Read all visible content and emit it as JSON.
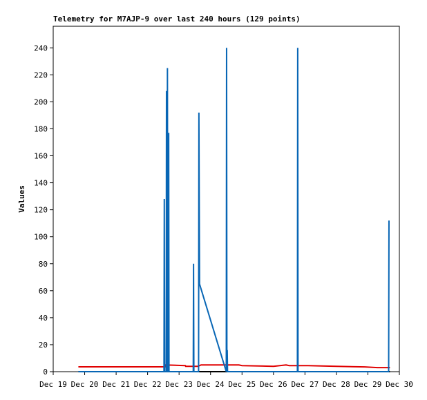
{
  "chart_data": {
    "type": "line",
    "title": "Telemetry for M7AJP-9 over last 240 hours (129 points)",
    "y_label": "Values",
    "xlim": [
      19,
      30
    ],
    "xticks": [
      {
        "value": 19,
        "label": "Dec 19"
      },
      {
        "value": 20,
        "label": "Dec 20"
      },
      {
        "value": 21,
        "label": "Dec 21"
      },
      {
        "value": 22,
        "label": "Dec 22"
      },
      {
        "value": 23,
        "label": "Dec 23"
      },
      {
        "value": 24,
        "label": "Dec 24"
      },
      {
        "value": 25,
        "label": "Dec 25"
      },
      {
        "value": 26,
        "label": "Dec 26"
      },
      {
        "value": 27,
        "label": "Dec 27"
      },
      {
        "value": 28,
        "label": "Dec 28"
      },
      {
        "value": 29,
        "label": "Dec 29"
      },
      {
        "value": 30,
        "label": "Dec 30"
      }
    ],
    "ylim": [
      0,
      256
    ],
    "yticks": [
      0,
      20,
      40,
      60,
      80,
      100,
      120,
      140,
      160,
      180,
      200,
      220,
      240
    ],
    "grid": false,
    "series": [
      {
        "color": "#000000",
        "x": [
          19.8,
          29.7
        ],
        "values": [
          0,
          0
        ]
      },
      {
        "color": "#e00000",
        "x": [
          19.8,
          22.55,
          22.56,
          23.2,
          23.21,
          23.6,
          23.7,
          24.9,
          25,
          26,
          26.4,
          26.5,
          27,
          27.1,
          28,
          28.9,
          29.3,
          29.7
        ],
        "values": [
          3.6,
          3.6,
          5,
          4.5,
          4,
          4,
          5,
          5,
          4.5,
          4,
          5,
          4.5,
          4.5,
          4.5,
          4,
          3.5,
          3,
          3
        ]
      },
      {
        "color": "#0866b5",
        "x": [
          19.8,
          22.52,
          22.53,
          22.54,
          22.59,
          22.6,
          22.61,
          22.62,
          22.63,
          22.64,
          22.66,
          22.67,
          22.68,
          23.45,
          23.46,
          23.47,
          23.62,
          23.63,
          23.65,
          24.5,
          24.51,
          24.52,
          24.53,
          24.54,
          26.76,
          26.77,
          26.78,
          29.66,
          29.67
        ],
        "values": [
          0,
          0,
          128,
          0,
          0,
          208,
          0,
          0,
          225,
          0,
          0,
          177,
          0,
          0,
          80,
          0,
          0,
          192,
          65,
          0,
          240,
          0,
          16,
          0,
          0,
          240,
          0,
          0,
          112
        ]
      }
    ]
  }
}
